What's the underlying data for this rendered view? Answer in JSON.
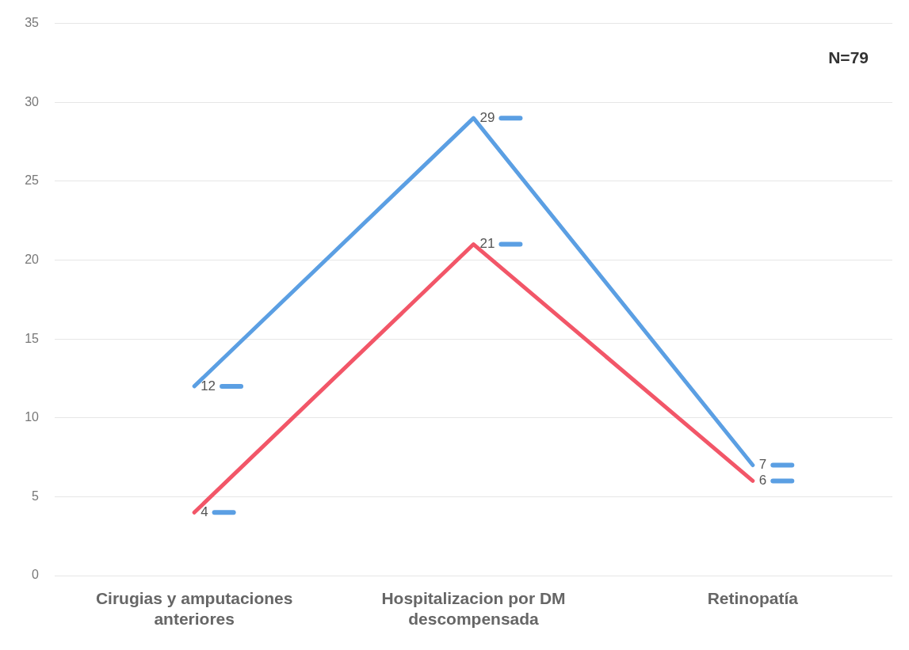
{
  "chart_data": {
    "type": "line",
    "categories": [
      "Cirugias y amputaciones anteriores",
      "Hospitalizacion por DM descompensada",
      "Retinopatía"
    ],
    "series": [
      {
        "color": "#5b9fe3",
        "values": [
          12,
          29,
          7
        ]
      },
      {
        "color": "#f25668",
        "values": [
          4,
          21,
          6
        ]
      }
    ],
    "ylim": [
      0,
      35
    ],
    "yticks": [
      0,
      5,
      10,
      15,
      20,
      25,
      30,
      35
    ],
    "grid": "y",
    "legend": false,
    "marker": "none",
    "line_style": "solid",
    "data_labels": true,
    "annotations": [
      "N=79"
    ]
  }
}
